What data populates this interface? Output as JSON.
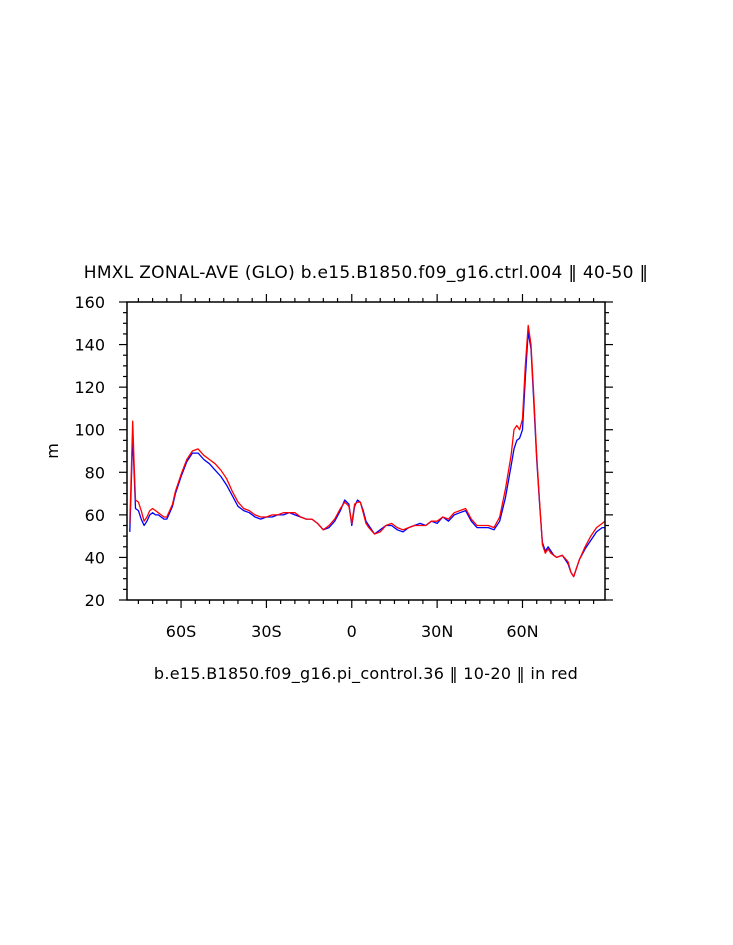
{
  "chart_data": {
    "type": "line",
    "title": "HMXL ZONAL-AVE (GLO) b.e15.B1850.f09_g16.ctrl.004 ‖ 40-50 ‖",
    "ylabel": "m",
    "xlabel": "",
    "footer": "b.e15.B1850.f09_g16.pi_control.36 ‖ 10-20 ‖ in red",
    "xlim": [
      -79,
      89
    ],
    "ylim": [
      20,
      160
    ],
    "x_ticks": [
      {
        "value": -60,
        "label": "60S"
      },
      {
        "value": -30,
        "label": "30S"
      },
      {
        "value": 0,
        "label": "0"
      },
      {
        "value": 30,
        "label": "30N"
      },
      {
        "value": 60,
        "label": "60N"
      }
    ],
    "y_ticks": [
      {
        "value": 20,
        "label": "20"
      },
      {
        "value": 40,
        "label": "40"
      },
      {
        "value": 60,
        "label": "60"
      },
      {
        "value": 80,
        "label": "80"
      },
      {
        "value": 100,
        "label": "100"
      },
      {
        "value": 120,
        "label": "120"
      },
      {
        "value": 140,
        "label": "140"
      },
      {
        "value": 160,
        "label": "160"
      }
    ],
    "grid": false,
    "series": [
      {
        "color": "#0000ff",
        "x": [
          -78,
          -77.5,
          -77,
          -76.5,
          -76,
          -75,
          -74,
          -73,
          -72,
          -71,
          -70,
          -69,
          -68,
          -67,
          -66,
          -65,
          -64,
          -63,
          -62,
          -60,
          -58,
          -56,
          -54,
          -52,
          -50,
          -48,
          -46,
          -44,
          -42,
          -40,
          -38,
          -36,
          -34,
          -32,
          -30,
          -28,
          -26,
          -24,
          -22,
          -20,
          -18,
          -16,
          -14,
          -12,
          -10,
          -8,
          -6,
          -4,
          -2.5,
          -1,
          0,
          1,
          2,
          3,
          4,
          5,
          6,
          8,
          10,
          12,
          14,
          16,
          18,
          20,
          22,
          24,
          26,
          28,
          30,
          32,
          34,
          36,
          38,
          40,
          42,
          44,
          46,
          48,
          50,
          52,
          54,
          56,
          57,
          58,
          59,
          60,
          61,
          62,
          63,
          64,
          65,
          66,
          67,
          68,
          69,
          70,
          71,
          72,
          74,
          76,
          77,
          78,
          80,
          82,
          84,
          86,
          88,
          89
        ],
        "y": [
          52,
          75,
          98,
          80,
          63,
          62,
          58,
          55,
          57,
          60,
          61,
          60,
          60,
          59,
          58,
          58,
          61,
          64,
          70,
          78,
          85,
          89,
          89,
          86,
          84,
          81,
          78,
          74,
          69,
          64,
          62,
          61,
          59,
          58,
          59,
          59,
          60,
          60,
          61,
          60,
          59,
          58,
          58,
          56,
          53,
          54,
          57,
          62,
          67,
          65,
          55,
          64,
          67,
          66,
          62,
          57,
          55,
          51,
          53,
          55,
          55,
          53,
          52,
          54,
          55,
          56,
          55,
          57,
          56,
          59,
          57,
          60,
          61,
          62,
          57,
          54,
          54,
          54,
          53,
          57,
          68,
          83,
          91,
          95,
          96,
          100,
          124,
          146,
          138,
          112,
          86,
          65,
          47,
          43,
          45,
          43,
          41,
          40,
          41,
          37,
          33,
          31,
          39,
          44,
          48,
          52,
          54,
          54
        ]
      },
      {
        "color": "#ff0000",
        "x": [
          -78,
          -77.5,
          -77,
          -76.5,
          -76,
          -75,
          -74,
          -73,
          -72,
          -71,
          -70,
          -69,
          -68,
          -67,
          -66,
          -65,
          -64,
          -63,
          -62,
          -60,
          -58,
          -56,
          -54,
          -52,
          -50,
          -48,
          -46,
          -44,
          -42,
          -40,
          -38,
          -36,
          -34,
          -32,
          -30,
          -28,
          -26,
          -24,
          -22,
          -20,
          -18,
          -16,
          -14,
          -12,
          -10,
          -8,
          -6,
          -4,
          -2.5,
          -1,
          0,
          1,
          2,
          3,
          4,
          5,
          6,
          8,
          10,
          12,
          14,
          16,
          18,
          20,
          22,
          24,
          26,
          28,
          30,
          32,
          34,
          36,
          38,
          40,
          42,
          44,
          46,
          48,
          50,
          52,
          54,
          56,
          57,
          58,
          59,
          60,
          61,
          62,
          63,
          64,
          65,
          66,
          67,
          68,
          69,
          70,
          71,
          72,
          74,
          76,
          77,
          78,
          80,
          82,
          84,
          86,
          88,
          89
        ],
        "y": [
          56,
          80,
          104,
          84,
          67,
          66,
          62,
          57,
          59,
          62,
          63,
          62,
          61,
          60,
          59,
          59,
          62,
          65,
          71,
          79,
          86,
          90,
          91,
          88,
          86,
          84,
          81,
          77,
          71,
          66,
          63,
          62,
          60,
          59,
          59,
          60,
          60,
          61,
          61,
          61,
          59,
          58,
          58,
          56,
          53,
          55,
          58,
          63,
          66,
          64,
          56,
          65,
          66,
          66,
          61,
          56,
          54,
          51,
          52,
          55,
          56,
          54,
          53,
          54,
          55,
          55,
          55,
          57,
          57,
          59,
          58,
          61,
          62,
          63,
          58,
          55,
          55,
          55,
          54,
          59,
          72,
          88,
          100,
          102,
          100,
          105,
          130,
          149,
          140,
          115,
          88,
          66,
          46,
          42,
          44,
          42,
          41,
          40,
          41,
          38,
          33,
          31,
          39,
          45,
          50,
          54,
          56,
          57
        ]
      }
    ]
  }
}
